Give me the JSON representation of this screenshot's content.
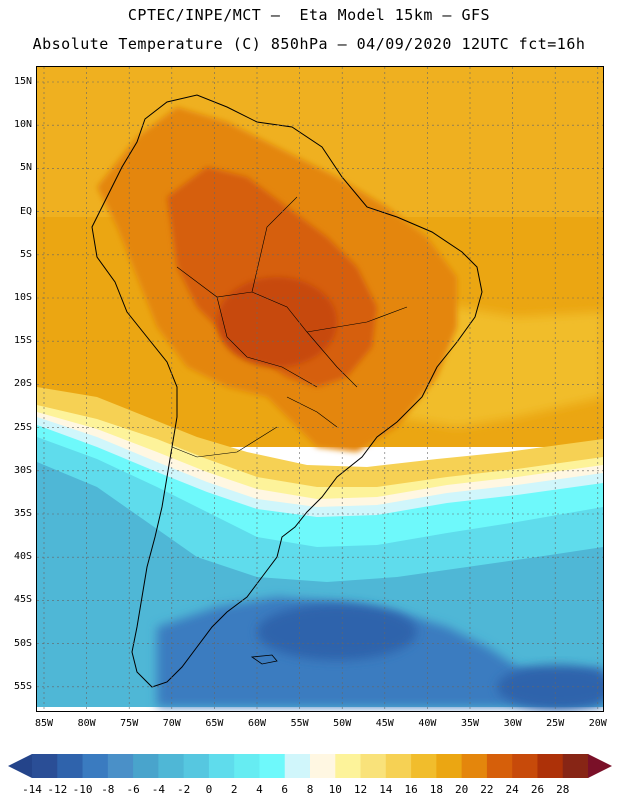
{
  "header": {
    "line1": "CPTEC/INPE/MCT –  Eta Model 15km – GFS",
    "line2": "Absolute Temperature (C) 850hPa – 04/09/2020 12UTC fct=16h"
  },
  "axes": {
    "lat_labels": [
      "15N",
      "10N",
      "5N",
      "EQ",
      "5S",
      "10S",
      "15S",
      "20S",
      "25S",
      "30S",
      "35S",
      "40S",
      "45S",
      "50S",
      "55S"
    ],
    "lon_labels": [
      "85W",
      "80W",
      "75W",
      "70W",
      "65W",
      "60W",
      "55W",
      "50W",
      "45W",
      "40W",
      "35W",
      "30W",
      "25W",
      "20W"
    ]
  },
  "colorbar": {
    "levels": [
      "-14",
      "-12",
      "-10",
      "-8",
      "-6",
      "-4",
      "-2",
      "0",
      "2",
      "4",
      "6",
      "8",
      "10",
      "12",
      "14",
      "16",
      "18",
      "20",
      "22",
      "24",
      "26",
      "28"
    ],
    "colors": [
      "#2a4e96",
      "#2f63ac",
      "#3a7bc0",
      "#4a90c8",
      "#49a4cc",
      "#4fb7d6",
      "#56c7e0",
      "#5fdcec",
      "#66ecf2",
      "#6ef9fb",
      "#d0f6fb",
      "#fff7e2",
      "#fdf39a",
      "#f9e27a",
      "#f6d154",
      "#f1bd2c",
      "#eba612",
      "#e4860c",
      "#d65f0a",
      "#c74a0a",
      "#ad3108",
      "#872515"
    ],
    "under_color": "#24448a",
    "over_color": "#7a1028"
  },
  "map": {
    "lon_range": [
      "85W",
      "20W"
    ],
    "lat_range": [
      "15N",
      "58S"
    ],
    "field": "Absolute Temperature (C) 850hPa"
  }
}
